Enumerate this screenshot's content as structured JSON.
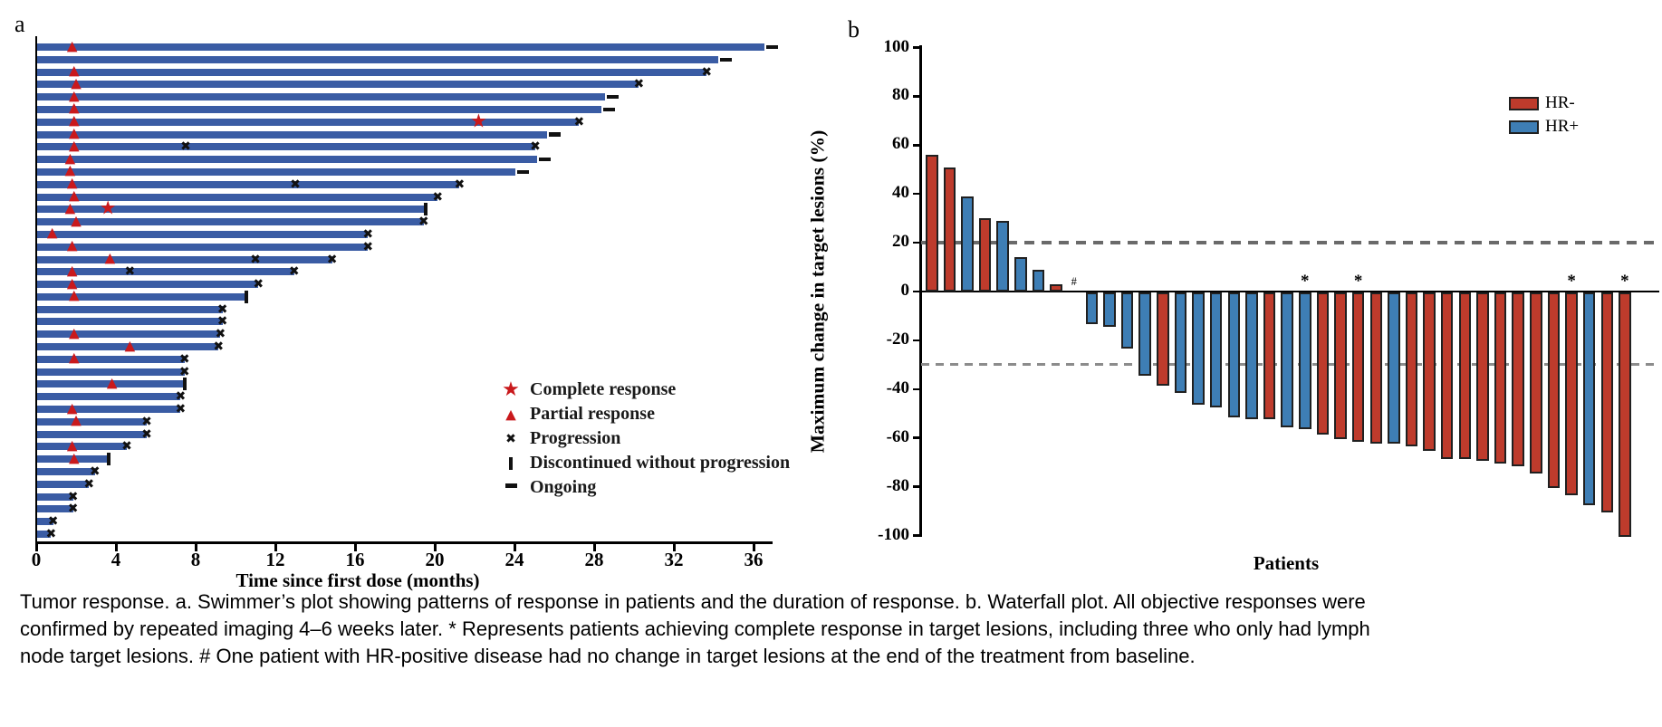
{
  "caption_lines": [
    "Tumor response. a. Swimmer’s plot showing patterns of response in patients and the duration of response. b. Waterfall plot. All objective responses were",
    "confirmed by repeated imaging 4–6 weeks later. * Represents patients achieving complete response in target lesions, including three who only had lymph",
    "node target lesions. # One patient with HR-positive disease had no change in target lesions at the end of the treatment from baseline."
  ],
  "colors": {
    "swimmer_bar": "#3A5CA4",
    "response_marker": "#C9191C",
    "event_marker": "#111111",
    "hr_negative": "#BE3B2C",
    "hr_positive": "#3E7EB5",
    "bar_border": "#202020",
    "reference_line_20": "#6A6A6A",
    "reference_line_30": "#8C8C8C",
    "axis": "#000000"
  },
  "chart_data": [
    {
      "type": "swimmer",
      "title": "a",
      "xlabel": "Time since first dose (months)",
      "x_ticks": [
        0,
        4,
        8,
        12,
        16,
        20,
        24,
        28,
        32,
        36
      ],
      "xlim": [
        0,
        37
      ],
      "legend": [
        {
          "symbol": "star",
          "label": "Complete response"
        },
        {
          "symbol": "triangle",
          "label": "Partial response"
        },
        {
          "symbol": "x",
          "label": "Progression"
        },
        {
          "symbol": "bar",
          "label": "Discontinued without progression"
        },
        {
          "symbol": "dash",
          "label": "Ongoing"
        }
      ],
      "patients": [
        {
          "duration": 36.5,
          "end": "ongoing",
          "pr": 1.8
        },
        {
          "duration": 34.2,
          "end": "ongoing"
        },
        {
          "duration": 33.6,
          "end": "progression",
          "pr": 1.9
        },
        {
          "duration": 30.2,
          "end": "progression",
          "pr": 2.0
        },
        {
          "duration": 28.5,
          "end": "ongoing",
          "pr": 1.9
        },
        {
          "duration": 28.3,
          "end": "ongoing",
          "pr": 1.9
        },
        {
          "duration": 27.2,
          "end": "progression",
          "pr": 1.9,
          "cr": 22.2
        },
        {
          "duration": 25.6,
          "end": "ongoing",
          "pr": 1.9
        },
        {
          "duration": 25.0,
          "end": "progression",
          "pr": 1.9,
          "mid": [
            7.5
          ]
        },
        {
          "duration": 25.1,
          "end": "ongoing",
          "pr": 1.7
        },
        {
          "duration": 24.0,
          "end": "ongoing",
          "pr": 1.7
        },
        {
          "duration": 21.2,
          "end": "progression",
          "pr": 1.8,
          "mid": [
            13.0
          ]
        },
        {
          "duration": 20.1,
          "end": "progression",
          "pr": 1.9
        },
        {
          "duration": 19.5,
          "end": "discontinued",
          "pr": 1.7,
          "cr": 3.6
        },
        {
          "duration": 19.4,
          "end": "progression",
          "pr": 2.0
        },
        {
          "duration": 16.6,
          "end": "progression",
          "pr": 0.8
        },
        {
          "duration": 16.6,
          "end": "progression",
          "pr": 1.8
        },
        {
          "duration": 14.8,
          "end": "progression",
          "pr": 3.7,
          "mid": [
            11.0
          ]
        },
        {
          "duration": 12.9,
          "end": "progression",
          "pr": 1.8,
          "mid": [
            4.7
          ]
        },
        {
          "duration": 11.1,
          "end": "progression",
          "pr": 1.8
        },
        {
          "duration": 10.5,
          "end": "discontinued",
          "pr": 1.9
        },
        {
          "duration": 9.3,
          "end": "progression"
        },
        {
          "duration": 9.3,
          "end": "progression"
        },
        {
          "duration": 9.2,
          "end": "progression",
          "pr": 1.9
        },
        {
          "duration": 9.1,
          "end": "progression",
          "pr": 4.7
        },
        {
          "duration": 7.4,
          "end": "progression",
          "pr": 1.9
        },
        {
          "duration": 7.4,
          "end": "progression"
        },
        {
          "duration": 7.4,
          "end": "discontinued",
          "pr": 3.8
        },
        {
          "duration": 7.2,
          "end": "progression"
        },
        {
          "duration": 7.2,
          "end": "progression",
          "pr": 1.8
        },
        {
          "duration": 5.5,
          "end": "progression",
          "pr": 2.0
        },
        {
          "duration": 5.5,
          "end": "progression"
        },
        {
          "duration": 4.5,
          "end": "progression",
          "pr": 1.8
        },
        {
          "duration": 3.6,
          "end": "discontinued",
          "pr": 1.9
        },
        {
          "duration": 2.9,
          "end": "progression"
        },
        {
          "duration": 2.6,
          "end": "progression"
        },
        {
          "duration": 1.8,
          "end": "progression"
        },
        {
          "duration": 1.8,
          "end": "progression"
        },
        {
          "duration": 0.8,
          "end": "progression"
        },
        {
          "duration": 0.7,
          "end": "progression"
        }
      ]
    },
    {
      "type": "bar",
      "title": "b",
      "xlabel": "Patients",
      "ylabel": "Maximum change in target lesions (%)",
      "ylim": [
        -100,
        100
      ],
      "y_ticks": [
        100,
        80,
        60,
        40,
        20,
        0,
        -20,
        -40,
        -60,
        -80,
        -100
      ],
      "reference_lines": [
        20,
        -30
      ],
      "legend": [
        {
          "name": "HR-",
          "group": "HR-"
        },
        {
          "name": "HR+",
          "group": "HR+"
        }
      ],
      "series": [
        {
          "value": 56,
          "group": "HR-"
        },
        {
          "value": 51,
          "group": "HR-"
        },
        {
          "value": 39,
          "group": "HR+"
        },
        {
          "value": 30,
          "group": "HR-"
        },
        {
          "value": 29,
          "group": "HR+"
        },
        {
          "value": 14,
          "group": "HR+"
        },
        {
          "value": 9,
          "group": "HR+"
        },
        {
          "value": 3,
          "group": "HR-"
        },
        {
          "value": 0,
          "group": "HR+",
          "mark": "#"
        },
        {
          "value": -13,
          "group": "HR+"
        },
        {
          "value": -14,
          "group": "HR+"
        },
        {
          "value": -23,
          "group": "HR+"
        },
        {
          "value": -34,
          "group": "HR+"
        },
        {
          "value": -38,
          "group": "HR-"
        },
        {
          "value": -41,
          "group": "HR+"
        },
        {
          "value": -46,
          "group": "HR+"
        },
        {
          "value": -47,
          "group": "HR+"
        },
        {
          "value": -51,
          "group": "HR+"
        },
        {
          "value": -52,
          "group": "HR+"
        },
        {
          "value": -52,
          "group": "HR-"
        },
        {
          "value": -55,
          "group": "HR+"
        },
        {
          "value": -56,
          "group": "HR+",
          "mark": "*"
        },
        {
          "value": -58,
          "group": "HR-"
        },
        {
          "value": -60,
          "group": "HR-"
        },
        {
          "value": -61,
          "group": "HR-",
          "mark": "*"
        },
        {
          "value": -62,
          "group": "HR-"
        },
        {
          "value": -62,
          "group": "HR+"
        },
        {
          "value": -63,
          "group": "HR-"
        },
        {
          "value": -65,
          "group": "HR-"
        },
        {
          "value": -68,
          "group": "HR-"
        },
        {
          "value": -68,
          "group": "HR-"
        },
        {
          "value": -69,
          "group": "HR-"
        },
        {
          "value": -70,
          "group": "HR-"
        },
        {
          "value": -71,
          "group": "HR-"
        },
        {
          "value": -74,
          "group": "HR-"
        },
        {
          "value": -80,
          "group": "HR-"
        },
        {
          "value": -83,
          "group": "HR-",
          "mark": "*"
        },
        {
          "value": -87,
          "group": "HR+"
        },
        {
          "value": -90,
          "group": "HR-"
        },
        {
          "value": -100,
          "group": "HR-",
          "mark": "*"
        }
      ]
    }
  ]
}
